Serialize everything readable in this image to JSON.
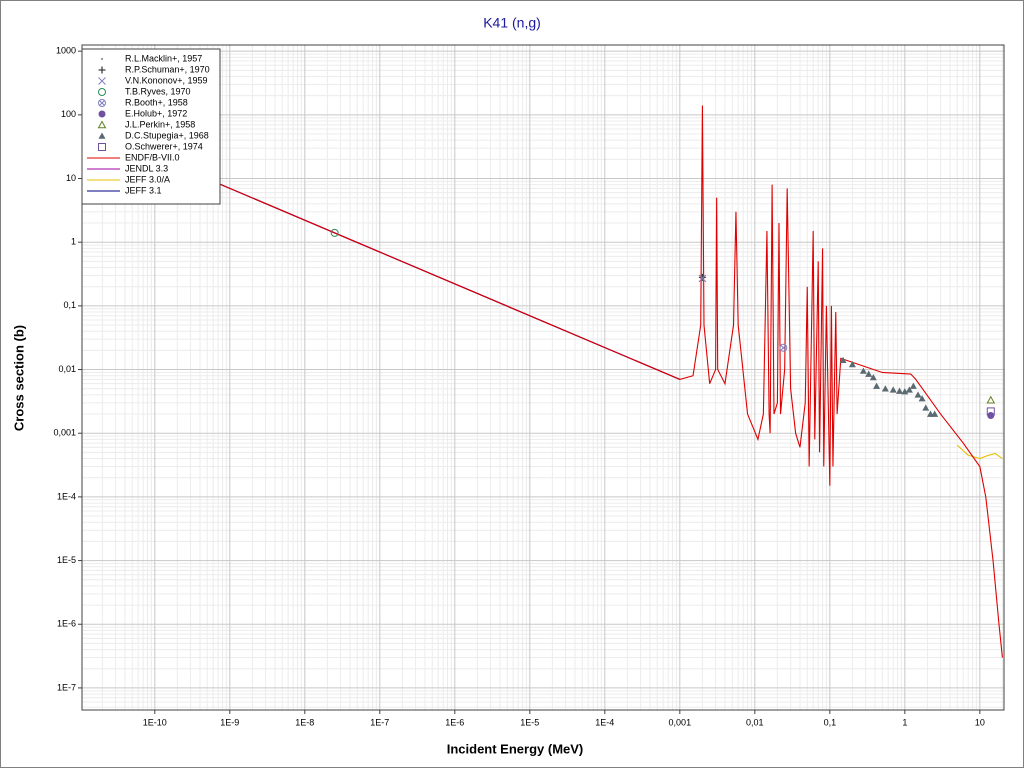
{
  "chart_data": {
    "type": "line",
    "title": "K41 (n,g)",
    "x_label": "Incident Energy (MeV)",
    "y_label": "Cross section (b)",
    "log_x": true,
    "log_y": true,
    "grid": true,
    "legend": "upper left",
    "xlim": [
      1.07e-11,
      21
    ],
    "ylim": [
      4.5e-08,
      1250
    ],
    "xticks": [
      {
        "value": 1e-10,
        "label": "1E-10"
      },
      {
        "value": 1e-09,
        "label": "1E-9"
      },
      {
        "value": 1e-08,
        "label": "1E-8"
      },
      {
        "value": 1e-07,
        "label": "1E-7"
      },
      {
        "value": 1e-06,
        "label": "1E-6"
      },
      {
        "value": 1e-05,
        "label": "1E-5"
      },
      {
        "value": 0.0001,
        "label": "1E-4"
      },
      {
        "value": 0.001,
        "label": "0,001"
      },
      {
        "value": 0.01,
        "label": "0,01"
      },
      {
        "value": 0.1,
        "label": "0,1"
      },
      1,
      10
    ],
    "yticks": [
      {
        "value": 1e-07,
        "label": "1E-7"
      },
      {
        "value": 1e-06,
        "label": "1E-6"
      },
      {
        "value": 1e-05,
        "label": "1E-5"
      },
      {
        "value": 0.0001,
        "label": "1E-4"
      },
      {
        "value": 0.001,
        "label": "0,001"
      },
      {
        "value": 0.01,
        "label": "0,01"
      },
      {
        "value": 0.1,
        "label": "0,1"
      },
      1,
      10,
      100,
      1000
    ],
    "series": [
      {
        "name": "R.L.Macklin+, 1957",
        "color": "#808080",
        "marker": "dot",
        "x": [
          14
        ],
        "y": [
          0.002
        ]
      },
      {
        "name": "R.P.Schuman+, 1970",
        "color": "#404040",
        "marker": "plus",
        "x": [
          0.002
        ],
        "y": [
          0.28
        ]
      },
      {
        "name": "V.N.Kononov+, 1959",
        "color": "#8080c0",
        "marker": "cross",
        "x": [
          0.002
        ],
        "y": [
          0.27
        ]
      },
      {
        "name": "T.B.Ryves, 1970",
        "color": "#2e8b57",
        "marker": "circle",
        "x": [
          2.5e-08
        ],
        "y": [
          1.4
        ]
      },
      {
        "name": "R.Booth+, 1958",
        "color": "#8080c0",
        "marker": "circle-x",
        "x": [
          0.024
        ],
        "y": [
          0.022
        ]
      },
      {
        "name": "E.Holub+, 1972",
        "color": "#7050a0",
        "marker": "filled-circle",
        "x": [
          14
        ],
        "y": [
          0.0019
        ]
      },
      {
        "name": "J.L.Perkin+, 1958",
        "color": "#608020",
        "marker": "triangle",
        "x": [
          14
        ],
        "y": [
          0.0033
        ]
      },
      {
        "name": "D.C.Stupegia+, 1968",
        "color": "#5a6a70",
        "marker": "filled-triangle",
        "x": [
          0.15,
          0.2,
          0.28,
          0.33,
          0.38,
          0.42,
          0.55,
          0.7,
          0.85,
          1.0,
          1.15,
          1.3,
          1.5,
          1.7,
          1.9,
          2.2,
          2.5
        ],
        "y": [
          0.014,
          0.012,
          0.0095,
          0.0085,
          0.0075,
          0.0055,
          0.005,
          0.0048,
          0.0046,
          0.0045,
          0.0048,
          0.0055,
          0.004,
          0.0035,
          0.0025,
          0.002,
          0.002
        ]
      },
      {
        "name": "O.Schwerer+, 1974",
        "color": "#7050a0",
        "marker": "square",
        "x": [
          14
        ],
        "y": [
          0.0022
        ]
      },
      {
        "name": "JENDL 3.3",
        "color": "#a000a0",
        "marker": "line",
        "x": [
          1e-11,
          0.001
        ],
        "y": [
          70,
          0.007
        ]
      },
      {
        "name": "JEFF 3.1",
        "color": "#000080",
        "marker": "line",
        "x": [
          1e-11,
          0.001
        ],
        "y": [
          70,
          0.007
        ]
      },
      {
        "name": "JEFF 3.0/A",
        "color": "#e8c000",
        "marker": "line",
        "x": [
          5,
          7,
          10,
          13,
          16,
          20
        ],
        "y": [
          0.00065,
          0.00045,
          0.0004,
          0.00045,
          0.00048,
          0.0004
        ]
      },
      {
        "name": "ENDF/B-VII.0",
        "color": "#e00000",
        "marker": "line",
        "x": [
          1e-11,
          0.001,
          0.0015,
          0.0019,
          0.002,
          0.0021,
          0.0025,
          0.003,
          0.0031,
          0.0032,
          0.004,
          0.0052,
          0.0056,
          0.006,
          0.008,
          0.011,
          0.013,
          0.0145,
          0.0155,
          0.016,
          0.017,
          0.018,
          0.02,
          0.021,
          0.022,
          0.025,
          0.027,
          0.03,
          0.035,
          0.04,
          0.047,
          0.05,
          0.053,
          0.06,
          0.063,
          0.07,
          0.073,
          0.08,
          0.083,
          0.09,
          0.1,
          0.105,
          0.11,
          0.12,
          0.125,
          0.14,
          0.5,
          1.2,
          1.4,
          3,
          6,
          10,
          12,
          15,
          18,
          20
        ],
        "y": [
          70,
          0.007,
          0.008,
          0.05,
          140,
          0.05,
          0.006,
          0.01,
          5,
          0.01,
          0.006,
          0.05,
          3,
          0.05,
          0.002,
          0.0008,
          0.002,
          1.5,
          0.002,
          0.001,
          8,
          0.002,
          0.003,
          2,
          0.002,
          0.01,
          7,
          0.005,
          0.001,
          0.0006,
          0.003,
          0.2,
          0.0003,
          1.5,
          0.0008,
          0.5,
          0.0005,
          0.8,
          0.0003,
          0.1,
          0.00015,
          0.1,
          0.0003,
          0.08,
          0.002,
          0.015,
          0.009,
          0.0085,
          0.007,
          0.002,
          0.0007,
          0.0003,
          0.0001,
          1e-05,
          1e-06,
          3e-07
        ]
      }
    ]
  }
}
